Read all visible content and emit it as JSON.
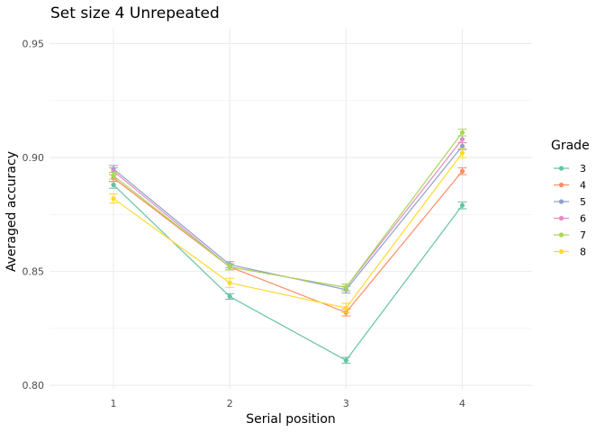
{
  "chart_data": {
    "type": "line",
    "title": "Set size 4 Unrepeated",
    "xlabel": "Serial position",
    "ylabel": "Averaged accuracy",
    "x": [
      1,
      2,
      3,
      4
    ],
    "x_tick_labels": [
      "1",
      "2",
      "3",
      "4"
    ],
    "xlim": [
      0.45,
      4.6
    ],
    "ylim": [
      0.7985,
      0.9565
    ],
    "y_ticks": [
      0.8,
      0.85,
      0.9,
      0.95
    ],
    "y_tick_labels": [
      "0.80",
      "0.85",
      "0.90",
      "0.95"
    ],
    "grid": true,
    "legend_title": "Grade",
    "legend_position": "right",
    "series": [
      {
        "name": "3",
        "color": "#66C2A5",
        "values": [
          0.888,
          0.839,
          0.811,
          0.879
        ],
        "err": [
          0.0015,
          0.0012,
          0.0013,
          0.0015
        ]
      },
      {
        "name": "4",
        "color": "#FC8D62",
        "values": [
          0.891,
          0.852,
          0.832,
          0.894
        ],
        "err": [
          0.0015,
          0.0013,
          0.0015,
          0.0015
        ]
      },
      {
        "name": "5",
        "color": "#8DA0CB",
        "values": [
          0.895,
          0.853,
          0.842,
          0.905
        ],
        "err": [
          0.0015,
          0.0013,
          0.0015,
          0.0015
        ]
      },
      {
        "name": "6",
        "color": "#E78AC3",
        "values": [
          0.894,
          0.852,
          0.843,
          0.908
        ],
        "err": [
          0.0015,
          0.0013,
          0.0015,
          0.0015
        ]
      },
      {
        "name": "7",
        "color": "#A6D854",
        "values": [
          0.892,
          0.852,
          0.843,
          0.911
        ],
        "err": [
          0.0015,
          0.0013,
          0.0015,
          0.0015
        ]
      },
      {
        "name": "8",
        "color": "#FFD92F",
        "values": [
          0.882,
          0.845,
          0.834,
          0.902
        ],
        "err": [
          0.002,
          0.002,
          0.002,
          0.002
        ]
      }
    ]
  }
}
